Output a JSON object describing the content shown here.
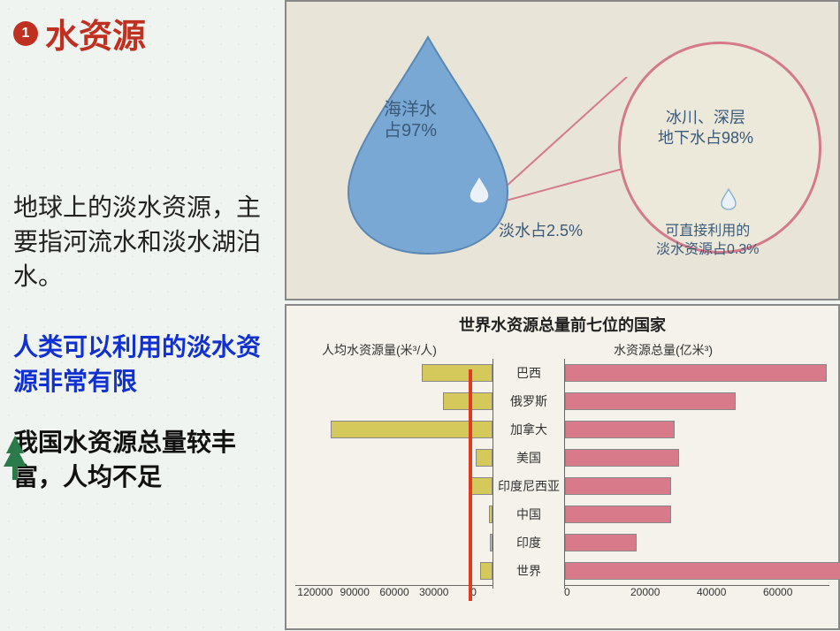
{
  "title": {
    "badge": "1",
    "text": "水资源"
  },
  "paragraphs": {
    "p1": "地球上的淡水资源，主要指河流水和淡水湖泊水。",
    "p2": "人类可以利用的淡水资源非常有限",
    "p3": "我国水资源总量较丰富，人均不足"
  },
  "diagram": {
    "ocean_label_l1": "海洋水",
    "ocean_label_l2": "占97%",
    "fresh_label": "淡水占2.5%",
    "glacier_label_l1": "冰川、深层",
    "glacier_label_l2": "地下水占98%",
    "usable_label_l1": "可直接利用的",
    "usable_label_l2": "淡水资源占0.3%",
    "colors": {
      "drop_fill": "#7aa8d4",
      "drop_stroke": "#5a88b4",
      "circle_border": "#d47a8a",
      "bg": "#e8e4d8",
      "text": "#3a5a7a"
    }
  },
  "chart": {
    "title": "世界水资源总量前七位的国家",
    "left_axis_label": "人均水资源量(米³/人)",
    "right_axis_label": "水资源总量(亿米³)",
    "categories": [
      "巴西",
      "俄罗斯",
      "加拿大",
      "美国",
      "印度尼西亚",
      "中国",
      "印度",
      "世界"
    ],
    "per_capita_values": [
      43000,
      30000,
      98000,
      10000,
      13000,
      2300,
      1800,
      7300
    ],
    "total_values": [
      69000,
      45000,
      29000,
      30000,
      28000,
      28000,
      19000,
      75000
    ],
    "left_ticks": [
      "0",
      "30000",
      "60000",
      "90000",
      "120000"
    ],
    "right_ticks": [
      "0",
      "20000",
      "40000",
      "60000"
    ],
    "left_max": 120000,
    "right_max": 70000,
    "colors": {
      "left_bar": "#d4c95a",
      "right_bar": "#d97a8a",
      "bg": "#f4f2ea",
      "red_line": "#e03a20"
    }
  }
}
